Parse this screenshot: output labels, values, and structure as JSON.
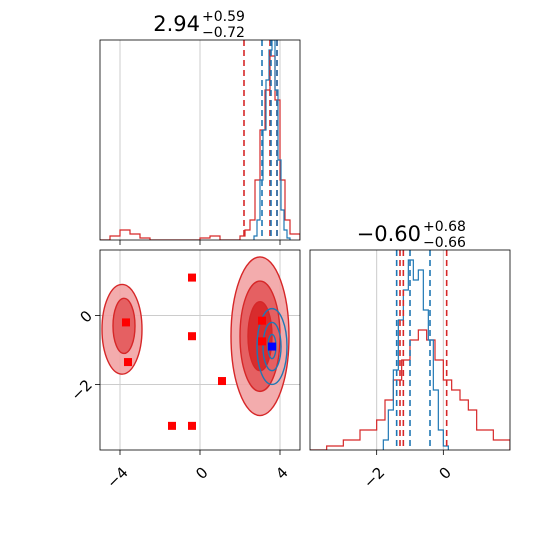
{
  "colors": {
    "red": "#d62728",
    "blue": "#1f77b4",
    "marker_red": "#ff0000",
    "marker_blue": "#0000ff",
    "grid": "#cccccc"
  },
  "chart_data": [
    {
      "type": "histogram",
      "panel": "top-left",
      "title_value": "2.94",
      "title_plus": "+0.59",
      "title_minus": "−0.72",
      "xlim": [
        -5,
        5
      ],
      "ylim": [
        0,
        1
      ],
      "grid": true,
      "quantiles_red": [
        2.2,
        3.5,
        3.85
      ],
      "quantiles_blue": [
        3.1,
        3.55,
        3.85
      ],
      "series": [
        {
          "color": "red",
          "bin_edges": [
            -5,
            -4.5,
            -4,
            -3.5,
            -3,
            -2.5,
            -2,
            -1.5,
            -1,
            -0.5,
            0,
            0.5,
            1,
            1.5,
            2,
            2.25,
            2.5,
            2.75,
            3,
            3.25,
            3.5,
            3.75,
            4,
            4.25,
            4.5,
            5
          ],
          "counts": [
            0.0,
            0.02,
            0.05,
            0.03,
            0.01,
            0.0,
            0.0,
            0.0,
            0.0,
            0.0,
            0.01,
            0.02,
            0.0,
            0.0,
            0.02,
            0.05,
            0.1,
            0.3,
            0.55,
            0.75,
            0.92,
            0.7,
            0.3,
            0.1,
            0.03
          ]
        },
        {
          "color": "blue",
          "bin_edges": [
            2.7,
            2.85,
            3.0,
            3.15,
            3.3,
            3.45,
            3.6,
            3.75,
            3.9,
            4.05,
            4.2,
            4.35,
            4.5
          ],
          "counts": [
            0.02,
            0.1,
            0.3,
            0.55,
            0.8,
            0.95,
            1.0,
            0.75,
            0.4,
            0.15,
            0.05,
            0.01
          ]
        }
      ]
    },
    {
      "type": "histogram",
      "panel": "bottom-right",
      "title_value": "−0.60",
      "title_plus": "+0.68",
      "title_minus": "−0.66",
      "xlim": [
        -4,
        2
      ],
      "ylim": [
        0,
        1
      ],
      "grid": true,
      "xticks": [
        -2,
        0
      ],
      "xtick_labels": [
        "−2",
        "0"
      ],
      "quantiles_red": [
        -1.3,
        -1.2,
        0.1
      ],
      "quantiles_blue": [
        -1.4,
        -1.0,
        -0.4
      ],
      "series": [
        {
          "color": "red",
          "bin_edges": [
            -4,
            -3.5,
            -3,
            -2.5,
            -2,
            -1.75,
            -1.5,
            -1.25,
            -1,
            -0.75,
            -0.5,
            -0.25,
            0,
            0.25,
            0.5,
            0.75,
            1,
            1.5,
            2
          ],
          "counts": [
            0.0,
            0.02,
            0.05,
            0.1,
            0.15,
            0.25,
            0.35,
            0.45,
            0.55,
            0.6,
            0.55,
            0.45,
            0.35,
            0.3,
            0.25,
            0.2,
            0.1,
            0.05
          ]
        },
        {
          "color": "blue",
          "bin_edges": [
            -1.8,
            -1.65,
            -1.5,
            -1.35,
            -1.2,
            -1.05,
            -0.9,
            -0.75,
            -0.6,
            -0.45,
            -0.3,
            -0.15,
            0.0,
            0.15
          ],
          "counts": [
            0.05,
            0.2,
            0.4,
            0.65,
            0.8,
            0.95,
            0.85,
            0.9,
            0.7,
            0.55,
            0.3,
            0.1,
            0.02
          ]
        }
      ]
    },
    {
      "type": "contour-scatter",
      "panel": "bottom-left",
      "xlim": [
        -5,
        5
      ],
      "ylim": [
        -3.9,
        1.9
      ],
      "grid": true,
      "xticks": [
        -4,
        0,
        4
      ],
      "xtick_labels": [
        "−4",
        "0",
        "4"
      ],
      "yticks": [
        -2,
        0
      ],
      "ytick_labels": [
        "−2",
        "0"
      ],
      "red_contours": [
        {
          "cx": 3.0,
          "cy": -0.6,
          "rx": 1.45,
          "ry": 2.3,
          "level": "outer"
        },
        {
          "cx": 3.0,
          "cy": -0.6,
          "rx": 1.0,
          "ry": 1.6,
          "level": "middle"
        },
        {
          "cx": 3.0,
          "cy": -0.6,
          "rx": 0.6,
          "ry": 1.0,
          "level": "inner"
        },
        {
          "cx": -3.9,
          "cy": -0.4,
          "rx": 1.0,
          "ry": 1.3,
          "level": "outer"
        },
        {
          "cx": -3.8,
          "cy": -0.3,
          "rx": 0.55,
          "ry": 0.8,
          "level": "middle"
        }
      ],
      "blue_contours": [
        {
          "cx": 3.6,
          "cy": -0.9,
          "rx": 0.75,
          "ry": 1.1
        },
        {
          "cx": 3.6,
          "cy": -0.9,
          "rx": 0.45,
          "ry": 0.7
        },
        {
          "cx": 3.6,
          "cy": -0.9,
          "rx": 0.2,
          "ry": 0.35
        }
      ],
      "red_markers": [
        {
          "x": -0.4,
          "y": 1.1
        },
        {
          "x": -3.7,
          "y": -0.2
        },
        {
          "x": -3.6,
          "y": -1.35
        },
        {
          "x": -0.4,
          "y": -0.6
        },
        {
          "x": 1.1,
          "y": -1.9
        },
        {
          "x": 3.1,
          "y": -0.15
        },
        {
          "x": 3.1,
          "y": -0.75
        },
        {
          "x": -1.4,
          "y": -3.2
        },
        {
          "x": -0.4,
          "y": -3.2
        }
      ],
      "blue_markers": [
        {
          "x": 3.6,
          "y": -0.9
        }
      ]
    }
  ]
}
